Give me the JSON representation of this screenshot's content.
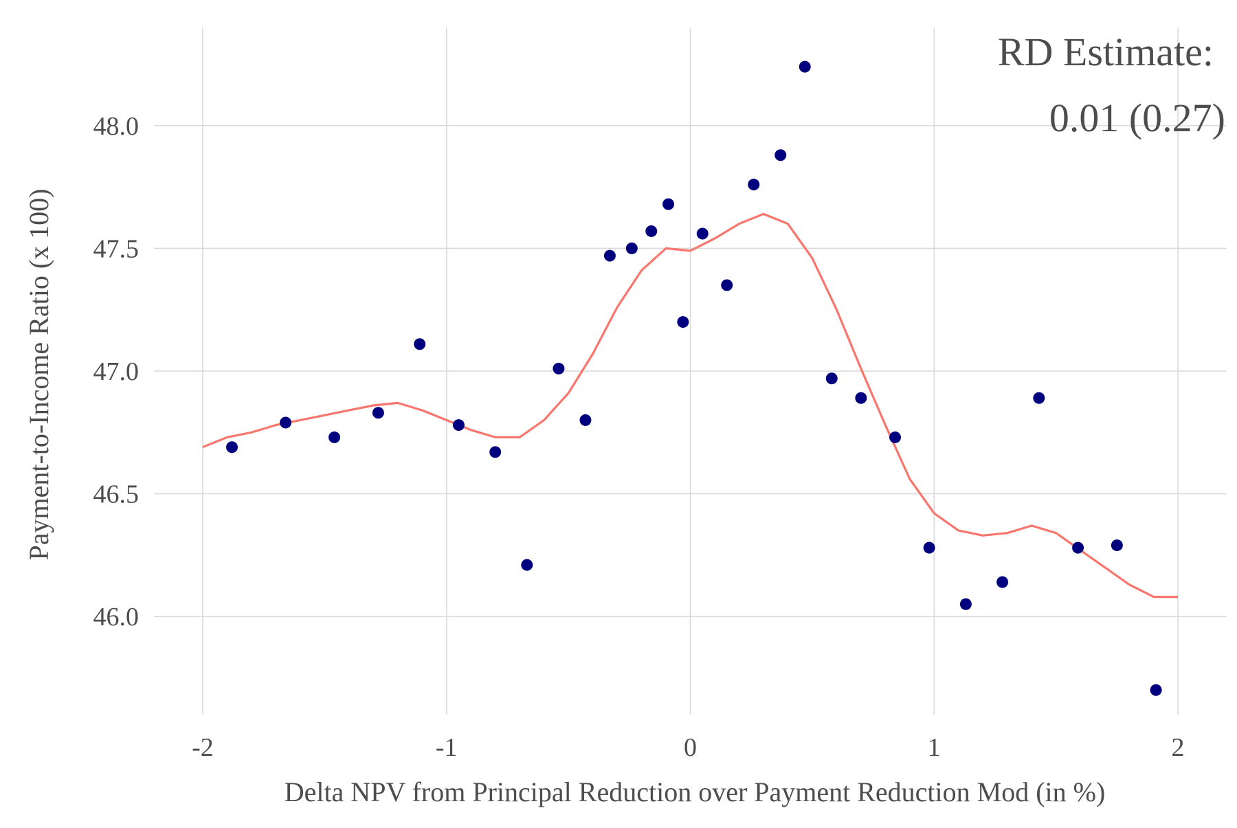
{
  "chart_data": {
    "type": "scatter",
    "xlabel": "Delta NPV from Principal Reduction over Payment Reduction Mod (in %)",
    "ylabel": "Payment-to-Income Ratio (x 100)",
    "xlim": [
      -2.2,
      2.2
    ],
    "ylim": [
      45.6,
      48.4
    ],
    "x_ticks": [
      -2,
      -1,
      0,
      1,
      2
    ],
    "x_tick_labels": [
      "-2",
      "-1",
      "0",
      "1",
      "2"
    ],
    "y_ticks": [
      46.0,
      46.5,
      47.0,
      47.5,
      48.0
    ],
    "y_tick_labels": [
      "46.0",
      "46.5",
      "47.0",
      "47.5",
      "48.0"
    ],
    "grid": true,
    "annotation": [
      "RD Estimate:",
      "0.01 (0.27)"
    ],
    "colors": {
      "points": "#00007f",
      "fit_line": "#f8766d",
      "grid": "#d9d9d9",
      "text": "#4d4d4d"
    },
    "points": [
      {
        "x": -1.88,
        "y": 46.69
      },
      {
        "x": -1.66,
        "y": 46.79
      },
      {
        "x": -1.46,
        "y": 46.73
      },
      {
        "x": -1.28,
        "y": 46.83
      },
      {
        "x": -1.11,
        "y": 47.11
      },
      {
        "x": -0.95,
        "y": 46.78
      },
      {
        "x": -0.8,
        "y": 46.67
      },
      {
        "x": -0.67,
        "y": 46.21
      },
      {
        "x": -0.54,
        "y": 47.01
      },
      {
        "x": -0.43,
        "y": 46.8
      },
      {
        "x": -0.33,
        "y": 47.47
      },
      {
        "x": -0.24,
        "y": 47.5
      },
      {
        "x": -0.16,
        "y": 47.57
      },
      {
        "x": -0.09,
        "y": 47.68
      },
      {
        "x": -0.03,
        "y": 47.2
      },
      {
        "x": 0.05,
        "y": 47.56
      },
      {
        "x": 0.15,
        "y": 47.35
      },
      {
        "x": 0.26,
        "y": 47.76
      },
      {
        "x": 0.37,
        "y": 47.88
      },
      {
        "x": 0.47,
        "y": 48.24
      },
      {
        "x": 0.58,
        "y": 46.97
      },
      {
        "x": 0.7,
        "y": 46.89
      },
      {
        "x": 0.84,
        "y": 46.73
      },
      {
        "x": 0.98,
        "y": 46.28
      },
      {
        "x": 1.13,
        "y": 46.05
      },
      {
        "x": 1.28,
        "y": 46.14
      },
      {
        "x": 1.43,
        "y": 46.89
      },
      {
        "x": 1.59,
        "y": 46.28
      },
      {
        "x": 1.75,
        "y": 46.29
      },
      {
        "x": 1.91,
        "y": 45.7
      }
    ],
    "fit_line": {
      "x": [
        -2.0,
        -1.9,
        -1.8,
        -1.7,
        -1.6,
        -1.5,
        -1.4,
        -1.3,
        -1.2,
        -1.1,
        -1.0,
        -0.9,
        -0.8,
        -0.7,
        -0.6,
        -0.5,
        -0.4,
        -0.3,
        -0.2,
        -0.1,
        0.0,
        0.1,
        0.2,
        0.3,
        0.4,
        0.5,
        0.6,
        0.7,
        0.8,
        0.9,
        1.0,
        1.1,
        1.2,
        1.3,
        1.4,
        1.5,
        1.6,
        1.7,
        1.8,
        1.9,
        2.0
      ],
      "y": [
        46.69,
        46.73,
        46.75,
        46.78,
        46.8,
        46.82,
        46.84,
        46.86,
        46.87,
        46.84,
        46.8,
        46.76,
        46.73,
        46.73,
        46.8,
        46.91,
        47.07,
        47.26,
        47.41,
        47.5,
        47.49,
        47.54,
        47.6,
        47.64,
        47.6,
        47.46,
        47.25,
        47.01,
        46.78,
        46.56,
        46.42,
        46.35,
        46.33,
        46.34,
        46.37,
        46.34,
        46.27,
        46.2,
        46.13,
        46.08,
        46.08
      ]
    }
  }
}
